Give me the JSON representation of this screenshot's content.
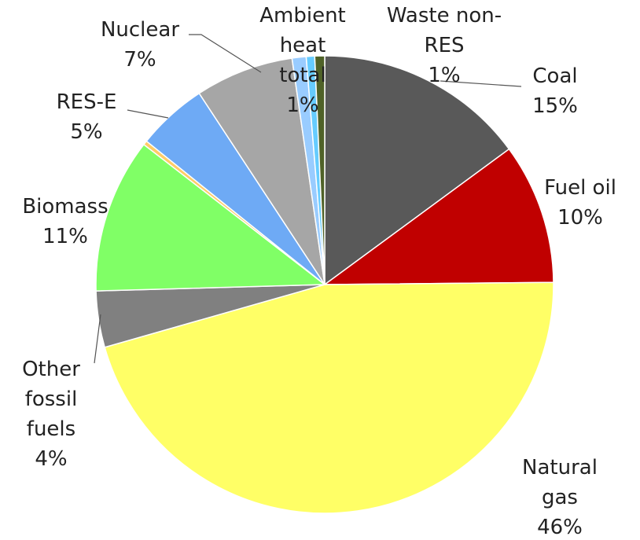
{
  "chart_data": {
    "type": "pie",
    "categories": [
      "Coal",
      "Fuel oil",
      "Natural gas",
      "Other fossil fuels",
      "Biomass",
      null,
      "RES-E",
      "Nuclear",
      "Ambient heat total",
      null,
      "Waste non-RES"
    ],
    "values": [
      15,
      10,
      46,
      4,
      11,
      0.3,
      5,
      7,
      1,
      0.6,
      0.7
    ],
    "value_labels": [
      "15%",
      "10%",
      "46%",
      "4%",
      "11%",
      null,
      "5%",
      "7%",
      "1%",
      null,
      "1%"
    ],
    "colors": [
      "#595959",
      "#c00000",
      "#ffff66",
      "#808080",
      "#80ff66",
      "#ffcc66",
      "#6eaaf5",
      "#a6a6a6",
      "#99ccff",
      "#66ccff",
      "#4f6228"
    ]
  }
}
